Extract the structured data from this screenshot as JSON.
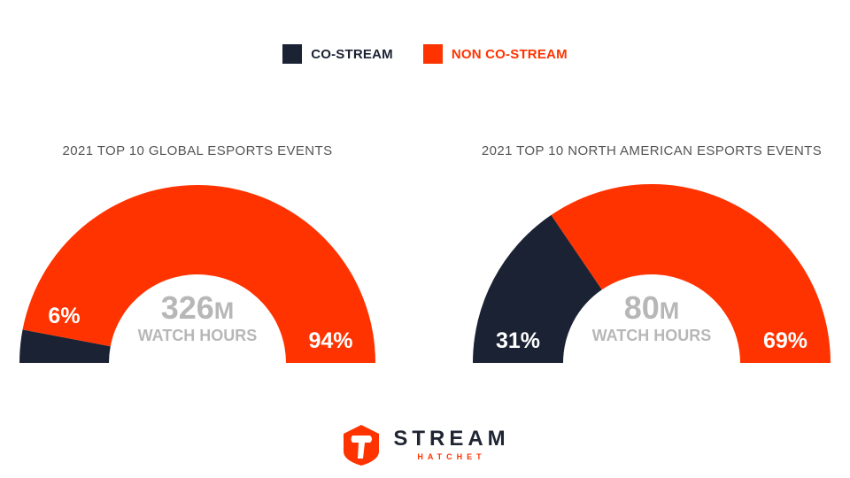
{
  "legend": [
    {
      "label": "CO-STREAM",
      "color": "#1a2233",
      "text_color": "#1a2233"
    },
    {
      "label": "NON CO-STREAM",
      "color": "#ff3300",
      "text_color": "#ff3300"
    }
  ],
  "chart_data": [
    {
      "type": "pie",
      "style": "semi-donut",
      "title": "2021 TOP 10 GLOBAL ESPORTS EVENTS",
      "center_value": "326",
      "center_unit": "M",
      "center_label": "WATCH HOURS",
      "slices": [
        {
          "name": "CO-STREAM",
          "value": 6,
          "label": "6%",
          "color": "#1a2233"
        },
        {
          "name": "NON CO-STREAM",
          "value": 94,
          "label": "94%",
          "color": "#ff3300"
        }
      ]
    },
    {
      "type": "pie",
      "style": "semi-donut",
      "title": "2021 TOP 10 NORTH AMERICAN ESPORTS EVENTS",
      "center_value": "80",
      "center_unit": "M",
      "center_label": "WATCH HOURS",
      "slices": [
        {
          "name": "CO-STREAM",
          "value": 31,
          "label": "31%",
          "color": "#1a2233"
        },
        {
          "name": "NON CO-STREAM",
          "value": 69,
          "label": "69%",
          "color": "#ff3300"
        }
      ]
    }
  ],
  "logo": {
    "main": "STREAM",
    "sub": "HATCHET",
    "icon": "axe-shield-icon",
    "color": "#ff3300"
  }
}
